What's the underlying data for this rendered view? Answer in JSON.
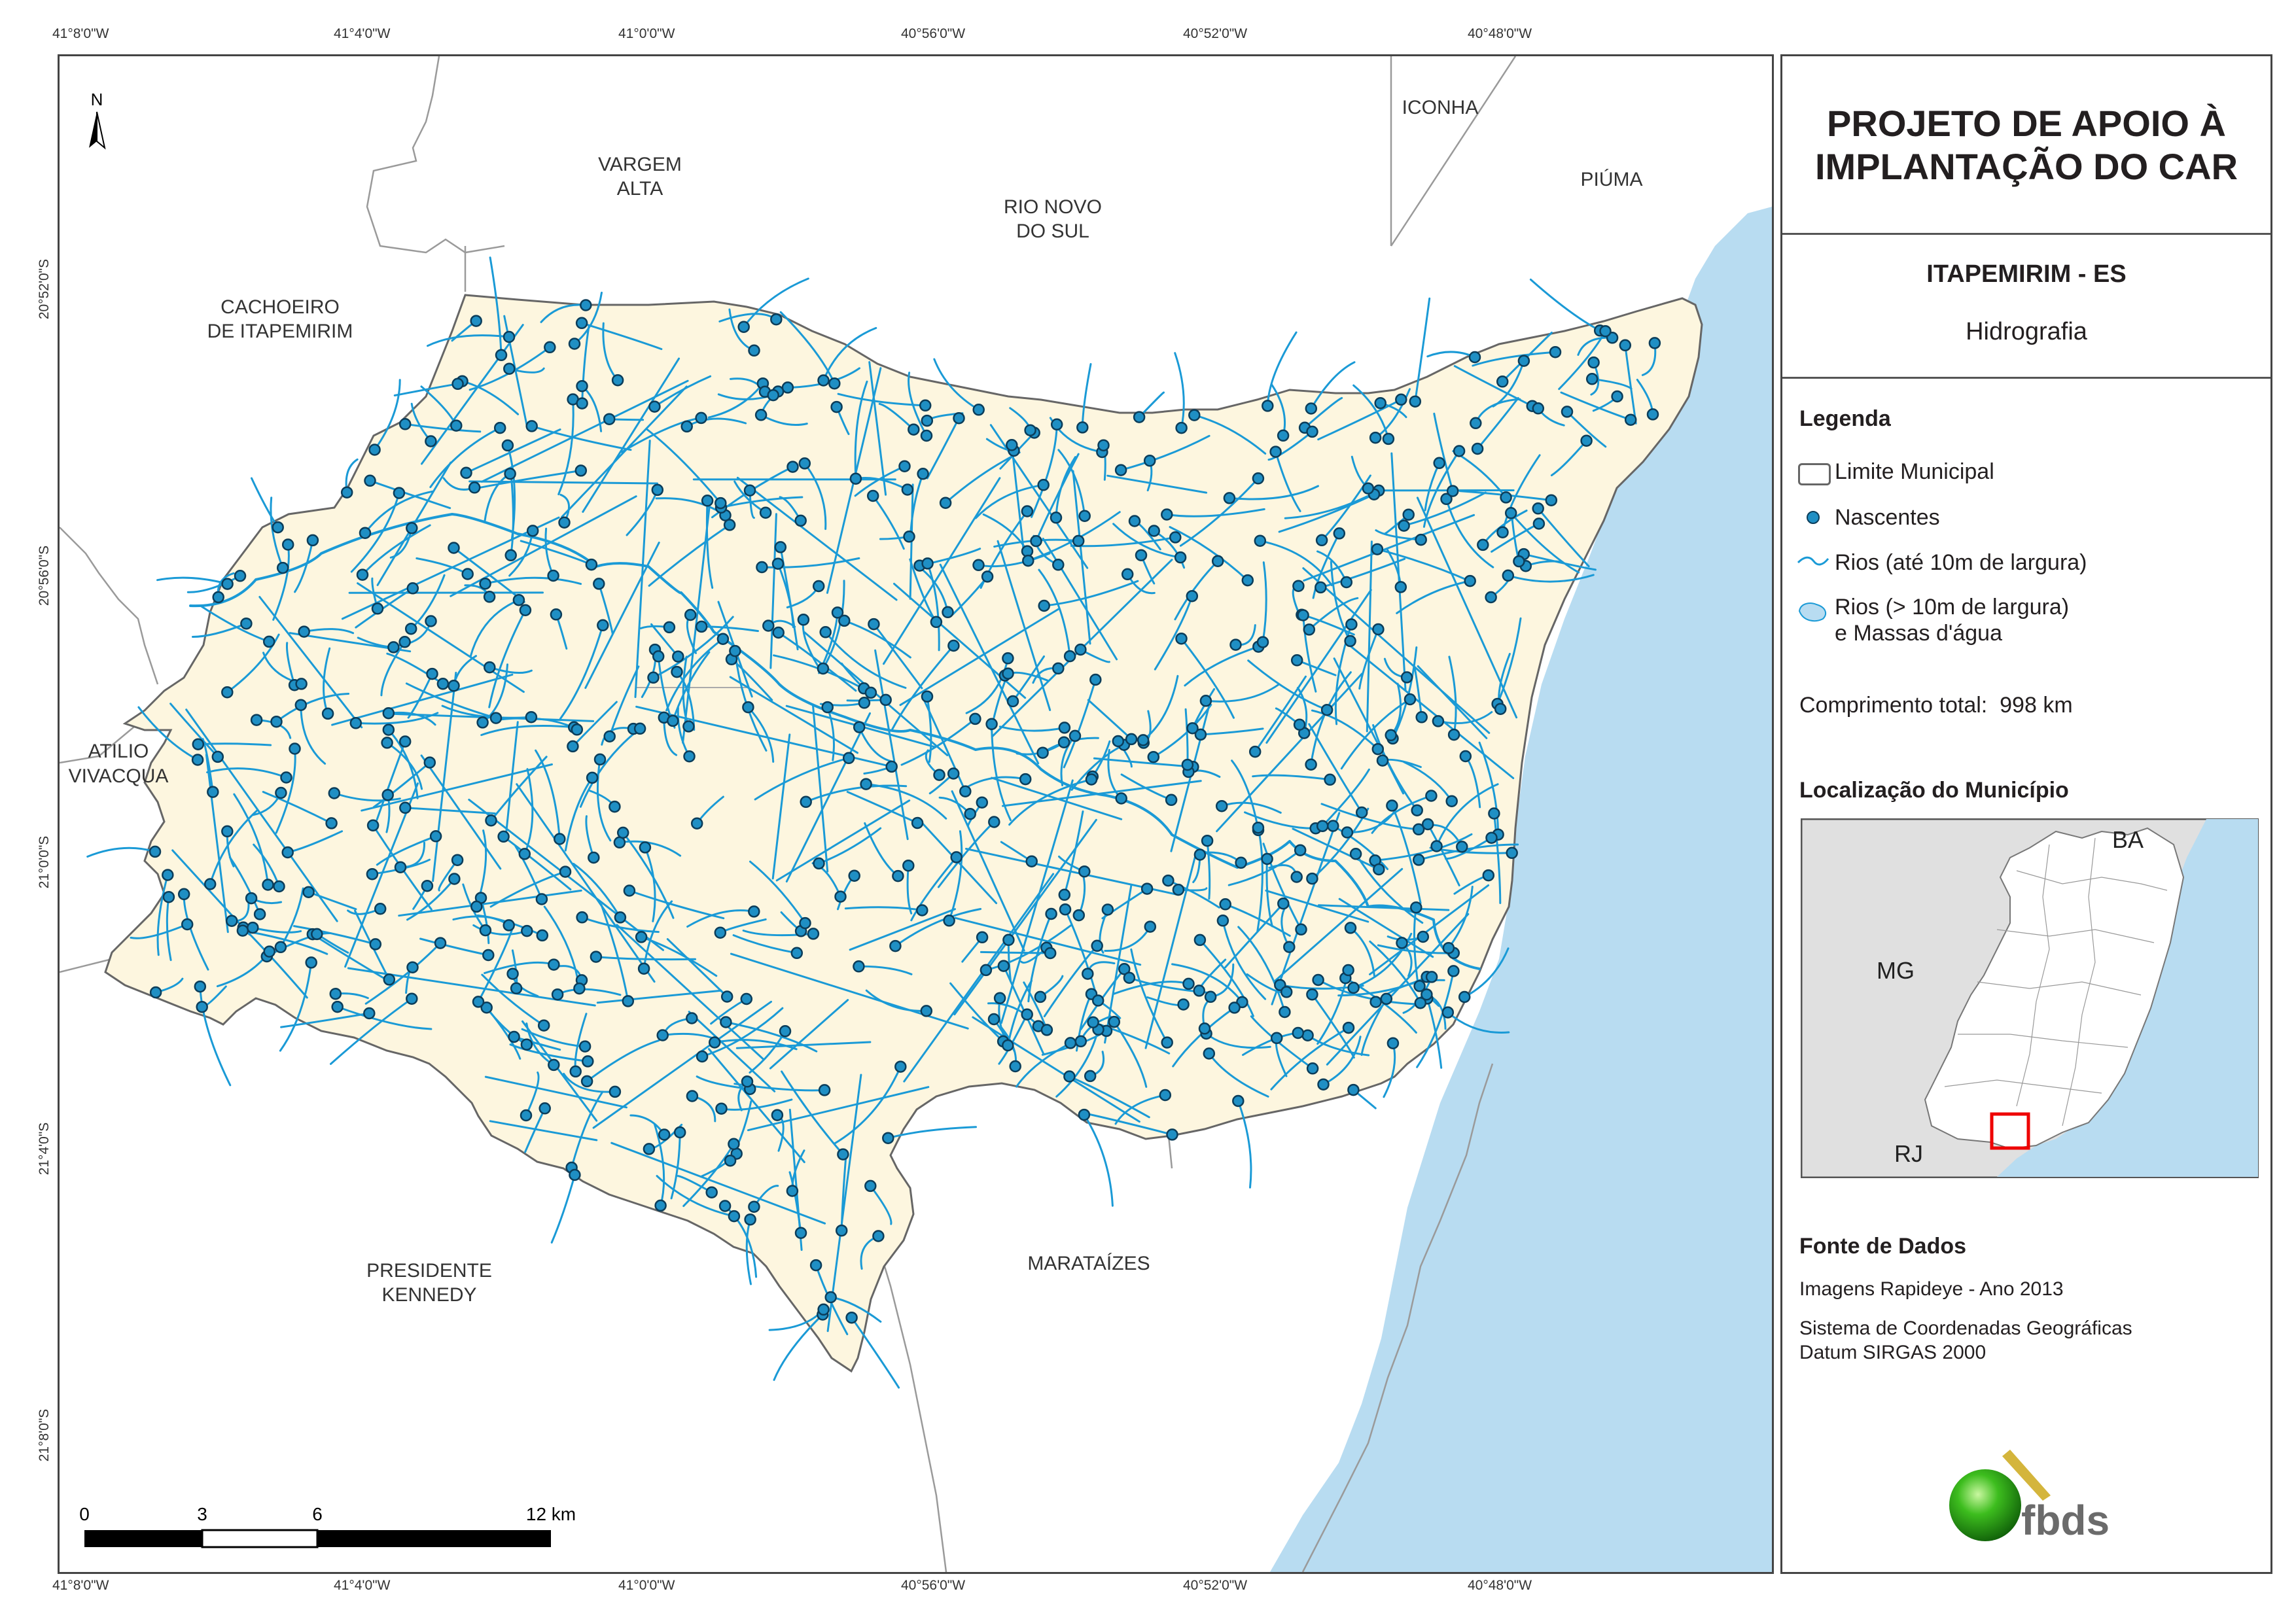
{
  "coords": {
    "top": [
      "41°8'0\"W",
      "41°4'0\"W",
      "41°0'0\"W",
      "40°56'0\"W",
      "40°52'0\"W",
      "40°48'0\"W"
    ],
    "bottom": [
      "41°8'0\"W",
      "41°4'0\"W",
      "41°0'0\"W",
      "40°56'0\"W",
      "40°52'0\"W",
      "40°48'0\"W"
    ],
    "left": [
      "20°52'0\"S",
      "20°56'0\"S",
      "21°0'0\"S",
      "21°4'0\"S",
      "21°8'0\"S"
    ]
  },
  "map": {
    "north": "N",
    "neighbors": {
      "vargem_alta": [
        "VARGEM",
        "ALTA"
      ],
      "rio_novo": [
        "RIO NOVO",
        "DO SUL"
      ],
      "iconha": "ICONHA",
      "piuma": "PIÚMA",
      "cachoeiro": [
        "CACHOEIRO",
        "DE ITAPEMIRIM"
      ],
      "atilio": [
        "ATILIO",
        "VIVACQUA"
      ],
      "presidente": [
        "PRESIDENTE",
        "KENNEDY"
      ],
      "marataizes": "MARATAÍZES"
    },
    "scale": {
      "labels": [
        "0",
        "3",
        "6",
        "12 km"
      ]
    },
    "colors": {
      "municipality": "#fdf6df",
      "water": "#b8dcf1",
      "river": "#1a9ad6",
      "spring": "#1f8fc4"
    }
  },
  "panel": {
    "title": [
      "PROJETO DE APOIO À",
      "IMPLANTAÇÃO DO CAR"
    ],
    "municipality": "ITAPEMIRIM - ES",
    "theme": "Hidrografia",
    "legend": {
      "title": "Legenda",
      "boundary": "Limite Municipal",
      "springs": "Nascentes",
      "rivers_small": "Rios (até 10m de largura)",
      "rivers_large": [
        "Rios (> 10m de largura)",
        "e Massas d'água"
      ]
    },
    "total_length": {
      "label": "Comprimento total:",
      "value": "998 km"
    },
    "location": {
      "title": "Localização do Município",
      "states": {
        "ba": "BA",
        "mg": "MG",
        "rj": "RJ"
      }
    },
    "sources": {
      "title": "Fonte de Dados",
      "imagery": "Imagens Rapideye - Ano 2013",
      "crs": "Sistema de Coordenadas Geográficas",
      "datum": "Datum SIRGAS 2000"
    },
    "logo_text": "fbds"
  }
}
